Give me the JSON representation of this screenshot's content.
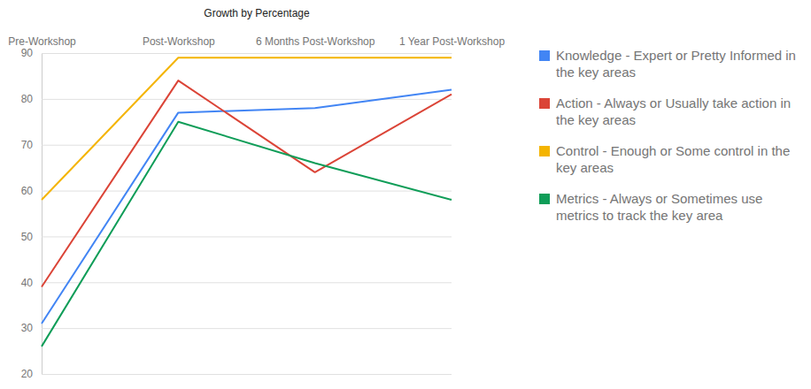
{
  "chart_data": {
    "type": "line",
    "title": "Growth by Percentage",
    "categories": [
      "Pre-Workshop",
      "Post-Workshop",
      "6 Months Post-Workshop",
      "1 Year Post-Workshop"
    ],
    "series": [
      {
        "name": "Knowledge - Expert or Pretty Informed in the key areas",
        "color": "#4285f4",
        "values": [
          31,
          77,
          78,
          82
        ]
      },
      {
        "name": "Action - Always or Usually take action in the key areas",
        "color": "#db4437",
        "values": [
          39,
          84,
          64,
          81
        ]
      },
      {
        "name": "Control - Enough or Some control in the key areas",
        "color": "#f4b400",
        "values": [
          58,
          89,
          89,
          89
        ]
      },
      {
        "name": "Metrics - Always or Sometimes use metrics to track the key area",
        "color": "#0f9d58",
        "values": [
          26,
          75,
          66,
          58
        ]
      }
    ],
    "ylim": [
      20,
      90
    ],
    "yticks": [
      20,
      30,
      40,
      50,
      60,
      70,
      80,
      90
    ],
    "grid": true,
    "legend": "right"
  }
}
